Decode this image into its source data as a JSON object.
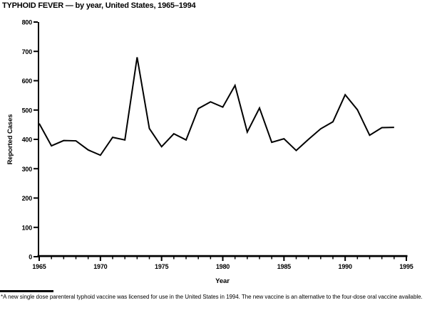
{
  "title": "TYPHOID FEVER — by year, United States, 1965–1994",
  "footnote": {
    "text": "*A new single dose parenteral typhoid vaccine was licensed for use in the United States in 1994. The new vaccine is an alternative to the four-dose oral vaccine available."
  },
  "colors": {
    "line": "#000000",
    "axis": "#000000",
    "background": "#ffffff"
  },
  "chart_data": {
    "type": "line",
    "title": "TYPHOID FEVER — by year, United States, 1965–1994",
    "xlabel": "Year",
    "ylabel": "Reported Cases",
    "x": [
      1965,
      1966,
      1967,
      1968,
      1969,
      1970,
      1971,
      1972,
      1973,
      1974,
      1975,
      1976,
      1977,
      1978,
      1979,
      1980,
      1981,
      1982,
      1983,
      1984,
      1985,
      1986,
      1987,
      1988,
      1989,
      1990,
      1991,
      1992,
      1993,
      1994
    ],
    "values": [
      454,
      378,
      396,
      395,
      364,
      346,
      407,
      398,
      680,
      437,
      375,
      419,
      398,
      505,
      528,
      510,
      584,
      425,
      507,
      390,
      402,
      362,
      400,
      436,
      460,
      552,
      501,
      414,
      440,
      441
    ],
    "xlim": [
      1965,
      1995
    ],
    "ylim": [
      0,
      800
    ],
    "y_ticks": [
      0,
      100,
      200,
      300,
      400,
      500,
      600,
      700,
      800
    ],
    "x_ticks_major": [
      1965,
      1970,
      1975,
      1980,
      1985,
      1990,
      1995
    ],
    "x_ticks_minor_step": 1,
    "grid": false,
    "legend": "none",
    "line_color": "#000000"
  }
}
